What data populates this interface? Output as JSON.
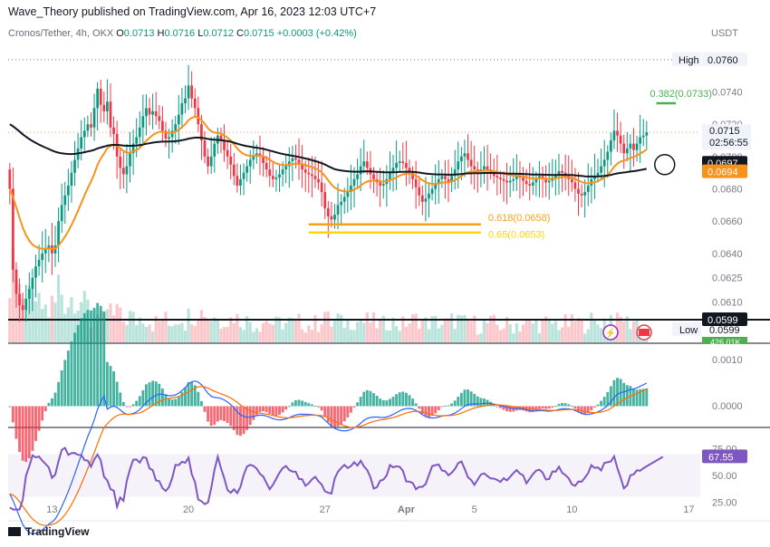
{
  "header": {
    "publisher": "Wave_Theory published on TradingView.com, Apr 16, 2023 12:03 UTC+7"
  },
  "legend": {
    "symbol": "Cronos/Tether, 4h, OKX",
    "open_label": "O",
    "open": "0.0713",
    "high_label": "H",
    "high": "0.0716",
    "low_label": "L",
    "low": "0.0712",
    "close_label": "C",
    "close": "0.0715",
    "change": "+0.0003 (+0.42%)"
  },
  "footer": {
    "brand": "TradingView"
  },
  "chart_data": {
    "type": "candlestick",
    "currency": "USDT",
    "ylim": [
      0.0585,
      0.077
    ],
    "y_ticks": [
      "0.0740",
      "0.0720",
      "0.0700",
      "0.0680",
      "0.0660",
      "0.0640",
      "0.0625",
      "0.0610"
    ],
    "x_ticks": [
      {
        "label": "13",
        "bar": 13
      },
      {
        "label": "20",
        "bar": 55
      },
      {
        "label": "27",
        "bar": 97
      },
      {
        "label": "Apr",
        "bar": 122
      },
      {
        "label": "5",
        "bar": 143
      },
      {
        "label": "10",
        "bar": 173
      },
      {
        "label": "17",
        "bar": 209
      }
    ],
    "bars_total": 213,
    "last_bar": 201,
    "closes": [
      0.068,
      0.063,
      0.0615,
      0.0608,
      0.0605,
      0.0612,
      0.0618,
      0.0625,
      0.0632,
      0.0636,
      0.064,
      0.0643,
      0.0645,
      0.064,
      0.0645,
      0.066,
      0.067,
      0.0676,
      0.0682,
      0.069,
      0.0698,
      0.0705,
      0.0712,
      0.0716,
      0.072,
      0.0718,
      0.073,
      0.0742,
      0.0732,
      0.0728,
      0.0734,
      0.0718,
      0.0714,
      0.07,
      0.0693,
      0.0689,
      0.0694,
      0.0702,
      0.0708,
      0.0712,
      0.0718,
      0.0725,
      0.073,
      0.0726,
      0.0728,
      0.0725,
      0.0722,
      0.0716,
      0.0711,
      0.0712,
      0.0716,
      0.072,
      0.0726,
      0.0733,
      0.0736,
      0.0744,
      0.0736,
      0.073,
      0.072,
      0.071,
      0.07,
      0.0694,
      0.07,
      0.0708,
      0.0713,
      0.071,
      0.0704,
      0.07,
      0.0695,
      0.0688,
      0.0682,
      0.0686,
      0.069,
      0.0694,
      0.0698,
      0.07,
      0.0702,
      0.07,
      0.0696,
      0.0692,
      0.0688,
      0.0686,
      0.0687,
      0.0689,
      0.0692,
      0.0694,
      0.0697,
      0.0699,
      0.0698,
      0.0695,
      0.0692,
      0.069,
      0.0689,
      0.0688,
      0.0686,
      0.0684,
      0.0678,
      0.0668,
      0.0663,
      0.0661,
      0.0664,
      0.067,
      0.0672,
      0.0675,
      0.0678,
      0.0682,
      0.0686,
      0.0689,
      0.0694,
      0.0697,
      0.0693,
      0.0689,
      0.0686,
      0.0684,
      0.0682,
      0.0683,
      0.0686,
      0.069,
      0.0693,
      0.0696,
      0.0697,
      0.0696,
      0.0693,
      0.069,
      0.0686,
      0.0681,
      0.0676,
      0.0672,
      0.0674,
      0.0677,
      0.068,
      0.0683,
      0.0686,
      0.0688,
      0.0686,
      0.0684,
      0.0688,
      0.0692,
      0.0697,
      0.07,
      0.0702,
      0.0698,
      0.0694,
      0.0692,
      0.0691,
      0.0692,
      0.0694,
      0.0692,
      0.069,
      0.0688,
      0.0687,
      0.0686,
      0.0685,
      0.0684,
      0.0685,
      0.0686,
      0.0688,
      0.0687,
      0.0685,
      0.0683,
      0.0682,
      0.0684,
      0.0686,
      0.0688,
      0.0686,
      0.0684,
      0.0685,
      0.0687,
      0.0689,
      0.0691,
      0.069,
      0.0688,
      0.0686,
      0.0684,
      0.068,
      0.0677,
      0.0676,
      0.0678,
      0.0682,
      0.0686,
      0.0688,
      0.069,
      0.0694,
      0.0698,
      0.0703,
      0.071,
      0.0716,
      0.0713,
      0.0708,
      0.0702,
      0.0705,
      0.0708,
      0.0704,
      0.0708,
      0.0712,
      0.0713,
      0.0715
    ],
    "levels": [
      {
        "label": "High",
        "value_label": "0.0760",
        "value": 0.076,
        "kind": "dotted"
      },
      {
        "label": "Low",
        "value_label": "0.0599",
        "value": 0.0599,
        "kind": "solid"
      },
      {
        "label": "",
        "value_label": "0.0715",
        "value": 0.0715,
        "kind": "last-price",
        "countdown": "02:56:55"
      },
      {
        "label": "",
        "value_label": "0.0697",
        "value": 0.0697,
        "kind": "ema200"
      },
      {
        "label": "",
        "value_label": "0.0694",
        "value": 0.0694,
        "kind": "ema50"
      }
    ],
    "fib_levels": [
      {
        "label": "0.382(0.0733)",
        "value": 0.0733,
        "color": "#4caf50"
      },
      {
        "label": "0.618(0.0658)",
        "value": 0.0658,
        "color": "#f5a21a"
      },
      {
        "label": "0.65(0.0653)",
        "value": 0.0653,
        "color": "#ffd600"
      }
    ],
    "volume_label": "426.01K",
    "macd": {
      "y_ticks": [
        "0.0010",
        "0.0000"
      ]
    },
    "rsi": {
      "value_label": "67.55",
      "value": 67.55,
      "y_ticks": [
        "75.00",
        "50.00",
        "25.00"
      ]
    },
    "colors": {
      "up": "#089981",
      "down": "#f23645",
      "ema200": "#131722",
      "ema50": "#f7931a",
      "macd": "#2962ff",
      "signal": "#ff6d00",
      "rsi": "#7e57c2",
      "fib_green": "#4caf50"
    }
  }
}
